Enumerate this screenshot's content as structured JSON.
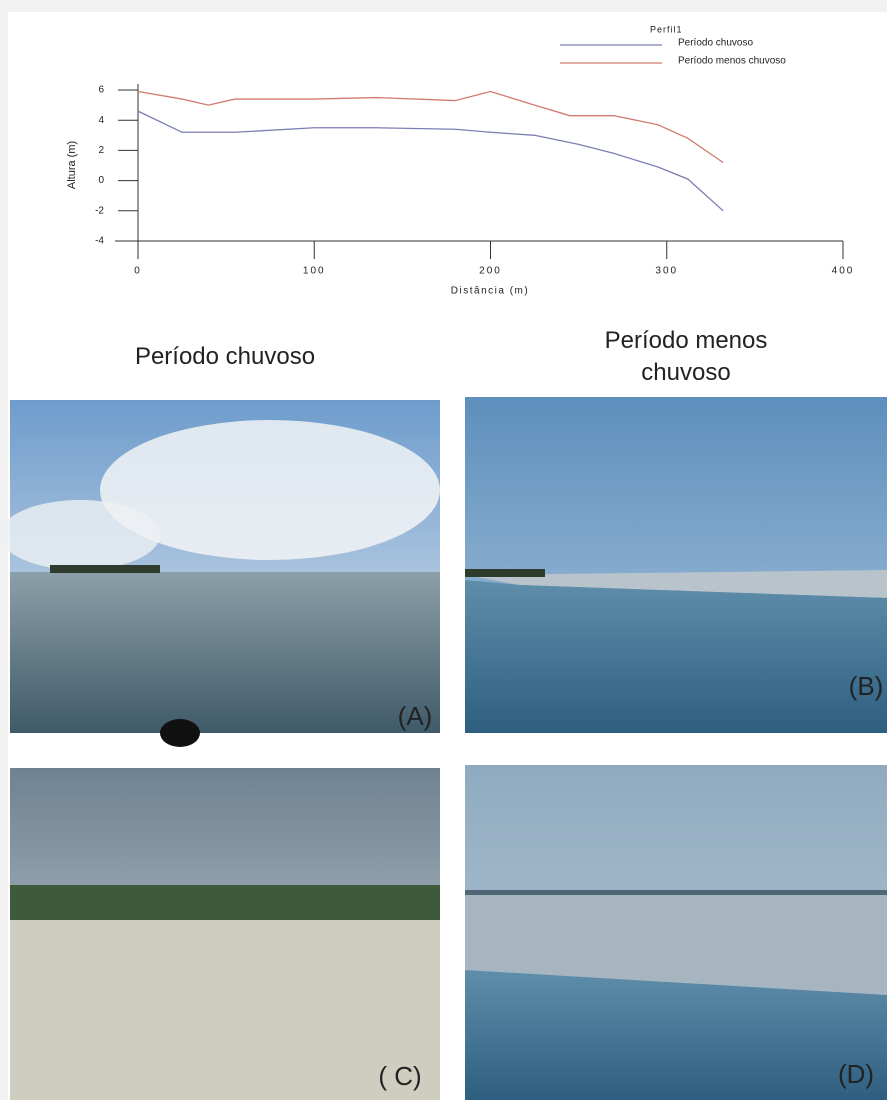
{
  "chart_data": {
    "type": "line",
    "title": "Perfil1",
    "x_label": "Distância (m)",
    "y_label": "Altura (m)",
    "xlim": [
      0,
      400
    ],
    "xticks": [
      0,
      100,
      200,
      300,
      400
    ],
    "ylim": [
      -4,
      6
    ],
    "yticks": [
      -4,
      -2,
      0,
      2,
      4,
      6
    ],
    "series": [
      {
        "name": "Período chuvoso",
        "color": "#7b7fb5",
        "x": [
          0,
          25,
          55,
          100,
          135,
          180,
          200,
          225,
          250,
          270,
          295,
          312,
          332
        ],
        "values": [
          4.6,
          3.2,
          3.2,
          3.5,
          3.5,
          3.4,
          3.2,
          3.0,
          2.4,
          1.8,
          0.9,
          0.1,
          -2.0
        ]
      },
      {
        "name": "Período menos chuvoso",
        "color": "#d27a6f",
        "x": [
          0,
          25,
          40,
          55,
          100,
          135,
          180,
          200,
          225,
          245,
          270,
          295,
          312,
          332
        ],
        "values": [
          5.9,
          5.4,
          5.0,
          5.4,
          5.4,
          5.5,
          5.3,
          5.9,
          5.0,
          4.3,
          4.3,
          3.7,
          2.8,
          1.2
        ]
      }
    ]
  },
  "headings": [
    "Período chuvoso",
    "Período menos chuvoso"
  ],
  "photo_labels": [
    "(A)",
    "(B)",
    "( C)",
    "(D)"
  ]
}
